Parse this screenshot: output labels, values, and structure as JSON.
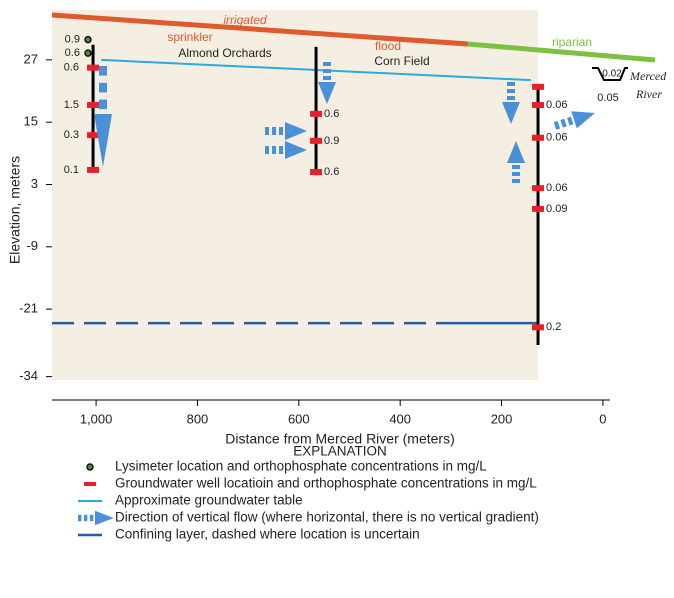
{
  "chart_data": {
    "type": "cross-section",
    "x_label": "Distance from Merced River (meters)",
    "y_label": "Elevation, meters",
    "xlim": [
      1087,
      -14
    ],
    "ylim": [
      -38.5,
      36.6
    ],
    "xticks": [
      {
        "value": 1000,
        "label": "1,000"
      },
      800,
      600,
      400,
      200,
      0
    ],
    "yticks": [
      27,
      15,
      3,
      -9,
      -21,
      -34
    ],
    "wells": [
      {
        "distance": 1006,
        "top": 29.9,
        "bottom": 5.4,
        "samples": [
          {
            "elevation": 25.5,
            "concentration": 0.6
          },
          {
            "elevation": 18.3,
            "concentration": 1.5
          },
          {
            "elevation": 12.5,
            "concentration": 0.3
          },
          {
            "elevation": 5.8,
            "concentration": 0.1
          }
        ]
      },
      {
        "distance": 566,
        "top": 29.5,
        "bottom": 4.8,
        "samples": [
          {
            "elevation": 16.6,
            "concentration": 0.6
          },
          {
            "elevation": 11.4,
            "concentration": 0.9
          },
          {
            "elevation": 5.4,
            "concentration": 0.6
          }
        ]
      },
      {
        "distance": 128,
        "top": 22.2,
        "bottom": -27.9,
        "samples": [
          {
            "elevation": 21.8,
            "concentration": null
          },
          {
            "elevation": 18.3,
            "concentration": 0.06
          },
          {
            "elevation": 12.0,
            "concentration": 0.06
          },
          {
            "elevation": 2.3,
            "concentration": 0.06
          },
          {
            "elevation": -1.7,
            "concentration": 0.09
          },
          {
            "elevation": -24.5,
            "concentration": 0.2
          }
        ]
      }
    ],
    "lysimeters": [
      {
        "distance": 1016,
        "elevation": 30.9,
        "concentration": 0.9
      },
      {
        "distance": 1016,
        "elevation": 28.3,
        "concentration": 0.6
      }
    ],
    "water_table": {
      "x": [
        990,
        142
      ],
      "y": [
        27,
        23.1
      ],
      "color": "#29abe2"
    },
    "confining_layer": [
      {
        "x": [
          1087,
          302
        ],
        "y": [
          -23.7,
          -23.7
        ],
        "dashed": true,
        "color": "#1f5fa8"
      },
      {
        "x": [
          302,
          128
        ],
        "y": [
          -23.7,
          -23.7
        ],
        "dashed": false,
        "color": "#1f5fa8"
      }
    ],
    "well_color": "#e8202a",
    "annotations": [
      "irrigated",
      "sprinkler",
      "Almond Orchards",
      "flood",
      "Corn Field",
      "riparian",
      "0.02",
      "0.05",
      "Merced",
      "River"
    ],
    "legend": {
      "title": "EXPLANATION",
      "items": [
        "Lysimeter location and orthophosphate concentrations in mg/L",
        "Groundwater well locatioin  and orthophosphate concentrations in mg/L",
        "Approximate groundwater table",
        "Direction of vertical flow (where horizontal, there is no vertical gradient)",
        "Confining layer, dashed where location is uncertain"
      ]
    }
  }
}
